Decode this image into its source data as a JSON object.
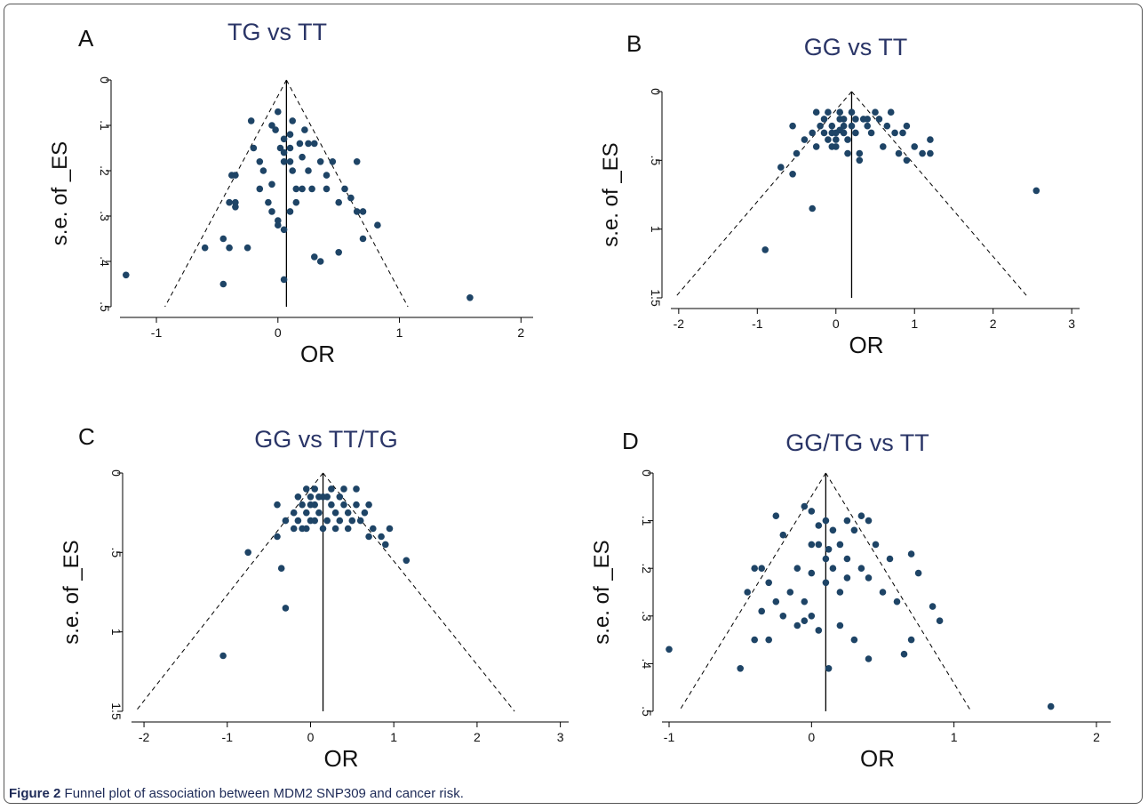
{
  "figure": {
    "caption_label": "Figure 2",
    "caption_text": " Funnel plot of association between MDM2 SNP309 and cancer risk."
  },
  "colors": {
    "points": "#1e4466",
    "axes": "#000000",
    "title": "#2a3567"
  },
  "chart_data": [
    {
      "type": "scatter",
      "panel": "A",
      "title": "TG vs TT",
      "xlabel": "OR",
      "ylabel": "s.e. of _ES",
      "xlim": [
        -1.3,
        2.1
      ],
      "ylim": [
        0,
        0.5
      ],
      "xticks": [
        "-1",
        "0",
        "1",
        "2"
      ],
      "yticks": [
        "0",
        ".1",
        ".2",
        ".3",
        ".4",
        ".5"
      ],
      "summary_effect": 0.07,
      "funnel_base": [
        -0.93,
        1.07
      ],
      "points": [
        [
          -1.25,
          0.43
        ],
        [
          -0.45,
          0.45
        ],
        [
          -0.6,
          0.37
        ],
        [
          -0.45,
          0.35
        ],
        [
          -0.4,
          0.37
        ],
        [
          -0.25,
          0.37
        ],
        [
          -0.38,
          0.21
        ],
        [
          -0.35,
          0.21
        ],
        [
          -0.4,
          0.27
        ],
        [
          -0.35,
          0.27
        ],
        [
          -0.35,
          0.28
        ],
        [
          -0.22,
          0.09
        ],
        [
          -0.2,
          0.15
        ],
        [
          -0.15,
          0.18
        ],
        [
          -0.12,
          0.2
        ],
        [
          -0.05,
          0.1
        ],
        [
          -0.02,
          0.11
        ],
        [
          0.0,
          0.07
        ],
        [
          0.02,
          0.15
        ],
        [
          -0.05,
          0.23
        ],
        [
          -0.08,
          0.27
        ],
        [
          -0.05,
          0.29
        ],
        [
          0.0,
          0.31
        ],
        [
          0.0,
          0.32
        ],
        [
          0.05,
          0.33
        ],
        [
          0.05,
          0.44
        ],
        [
          0.05,
          0.13
        ],
        [
          0.05,
          0.16
        ],
        [
          0.05,
          0.18
        ],
        [
          0.1,
          0.12
        ],
        [
          0.1,
          0.15
        ],
        [
          0.1,
          0.18
        ],
        [
          0.12,
          0.09
        ],
        [
          0.12,
          0.2
        ],
        [
          0.15,
          0.24
        ],
        [
          0.15,
          0.27
        ],
        [
          0.18,
          0.14
        ],
        [
          0.2,
          0.17
        ],
        [
          0.2,
          0.24
        ],
        [
          0.22,
          0.11
        ],
        [
          0.25,
          0.14
        ],
        [
          0.25,
          0.2
        ],
        [
          0.28,
          0.24
        ],
        [
          0.3,
          0.39
        ],
        [
          0.35,
          0.4
        ],
        [
          0.3,
          0.14
        ],
        [
          0.35,
          0.18
        ],
        [
          0.4,
          0.21
        ],
        [
          0.4,
          0.24
        ],
        [
          0.45,
          0.18
        ],
        [
          0.5,
          0.27
        ],
        [
          0.5,
          0.38
        ],
        [
          0.55,
          0.24
        ],
        [
          0.6,
          0.26
        ],
        [
          0.65,
          0.29
        ],
        [
          0.7,
          0.29
        ],
        [
          0.7,
          0.35
        ],
        [
          0.65,
          0.18
        ],
        [
          0.82,
          0.32
        ],
        [
          1.58,
          0.48
        ],
        [
          0.1,
          0.29
        ],
        [
          -0.15,
          0.24
        ]
      ]
    },
    {
      "type": "scatter",
      "panel": "B",
      "title": "GG vs TT",
      "xlabel": "OR",
      "ylabel": "s.e. of _ES",
      "xlim": [
        -2.1,
        3.1
      ],
      "ylim": [
        0,
        1.5
      ],
      "xticks": [
        "-2",
        "-1",
        "0",
        "1",
        "2",
        "3"
      ],
      "yticks": [
        "0",
        ".5",
        "1",
        "1.5"
      ],
      "summary_effect": 0.2,
      "funnel_base": [
        -2.05,
        2.45
      ],
      "points": [
        [
          -0.9,
          1.15
        ],
        [
          -0.3,
          0.85
        ],
        [
          -0.55,
          0.6
        ],
        [
          -0.7,
          0.55
        ],
        [
          -0.5,
          0.45
        ],
        [
          -0.55,
          0.25
        ],
        [
          -0.4,
          0.35
        ],
        [
          -0.3,
          0.3
        ],
        [
          -0.25,
          0.4
        ],
        [
          -0.15,
          0.2
        ],
        [
          -0.1,
          0.15
        ],
        [
          -0.15,
          0.3
        ],
        [
          -0.1,
          0.35
        ],
        [
          -0.05,
          0.25
        ],
        [
          -0.05,
          0.3
        ],
        [
          -0.05,
          0.4
        ],
        [
          0.0,
          0.3
        ],
        [
          0.0,
          0.35
        ],
        [
          0.0,
          0.4
        ],
        [
          0.05,
          0.2
        ],
        [
          0.05,
          0.15
        ],
        [
          0.05,
          0.28
        ],
        [
          0.1,
          0.2
        ],
        [
          0.1,
          0.25
        ],
        [
          0.1,
          0.3
        ],
        [
          0.15,
          0.35
        ],
        [
          0.2,
          0.15
        ],
        [
          0.2,
          0.25
        ],
        [
          0.25,
          0.2
        ],
        [
          0.25,
          0.3
        ],
        [
          0.3,
          0.45
        ],
        [
          0.3,
          0.5
        ],
        [
          0.35,
          0.2
        ],
        [
          0.4,
          0.2
        ],
        [
          0.4,
          0.25
        ],
        [
          0.45,
          0.3
        ],
        [
          0.5,
          0.15
        ],
        [
          0.55,
          0.2
        ],
        [
          0.6,
          0.4
        ],
        [
          0.65,
          0.25
        ],
        [
          0.7,
          0.15
        ],
        [
          0.75,
          0.3
        ],
        [
          0.8,
          0.45
        ],
        [
          0.85,
          0.3
        ],
        [
          0.9,
          0.5
        ],
        [
          0.9,
          0.25
        ],
        [
          1.0,
          0.4
        ],
        [
          1.1,
          0.45
        ],
        [
          1.2,
          0.35
        ],
        [
          1.2,
          0.45
        ],
        [
          2.55,
          0.72
        ],
        [
          -0.2,
          0.25
        ],
        [
          -0.25,
          0.15
        ],
        [
          0.15,
          0.45
        ]
      ]
    },
    {
      "type": "scatter",
      "panel": "C",
      "title": "GG vs TT/TG",
      "xlabel": "OR",
      "ylabel": "s.e. of _ES",
      "xlim": [
        -2.15,
        3.1
      ],
      "ylim": [
        0,
        1.5
      ],
      "xticks": [
        "-2",
        "-1",
        "0",
        "1",
        "2",
        "3"
      ],
      "yticks": [
        "0",
        ".5",
        "1",
        "1.5"
      ],
      "summary_effect": 0.15,
      "funnel_base": [
        -2.1,
        2.45
      ],
      "points": [
        [
          -1.05,
          1.15
        ],
        [
          -0.3,
          0.85
        ],
        [
          -0.35,
          0.6
        ],
        [
          -0.75,
          0.5
        ],
        [
          -0.4,
          0.4
        ],
        [
          -0.4,
          0.2
        ],
        [
          -0.3,
          0.3
        ],
        [
          -0.2,
          0.35
        ],
        [
          -0.15,
          0.15
        ],
        [
          -0.15,
          0.3
        ],
        [
          -0.1,
          0.2
        ],
        [
          -0.1,
          0.35
        ],
        [
          -0.05,
          0.1
        ],
        [
          -0.05,
          0.25
        ],
        [
          -0.05,
          0.35
        ],
        [
          0.0,
          0.15
        ],
        [
          0.0,
          0.2
        ],
        [
          0.0,
          0.3
        ],
        [
          0.05,
          0.1
        ],
        [
          0.05,
          0.2
        ],
        [
          0.05,
          0.3
        ],
        [
          0.1,
          0.15
        ],
        [
          0.1,
          0.25
        ],
        [
          0.15,
          0.35
        ],
        [
          0.2,
          0.15
        ],
        [
          0.2,
          0.3
        ],
        [
          0.25,
          0.1
        ],
        [
          0.25,
          0.2
        ],
        [
          0.3,
          0.25
        ],
        [
          0.3,
          0.35
        ],
        [
          0.35,
          0.15
        ],
        [
          0.35,
          0.3
        ],
        [
          0.4,
          0.2
        ],
        [
          0.4,
          0.1
        ],
        [
          0.45,
          0.25
        ],
        [
          0.5,
          0.3
        ],
        [
          0.55,
          0.1
        ],
        [
          0.55,
          0.2
        ],
        [
          0.6,
          0.3
        ],
        [
          0.65,
          0.25
        ],
        [
          0.7,
          0.2
        ],
        [
          0.7,
          0.4
        ],
        [
          0.75,
          0.35
        ],
        [
          0.85,
          0.4
        ],
        [
          0.9,
          0.45
        ],
        [
          0.95,
          0.35
        ],
        [
          1.15,
          0.55
        ],
        [
          -0.2,
          0.25
        ],
        [
          0.15,
          0.15
        ],
        [
          0.45,
          0.35
        ]
      ]
    },
    {
      "type": "scatter",
      "panel": "D",
      "title": "GG/TG vs TT",
      "xlabel": "OR",
      "ylabel": "s.e. of _ES",
      "xlim": [
        -1.05,
        2.1
      ],
      "ylim": [
        0,
        0.5
      ],
      "xticks": [
        "-1",
        "0",
        "1",
        "2"
      ],
      "yticks": [
        "0",
        ".1",
        ".2",
        ".3",
        ".4",
        ".5"
      ],
      "summary_effect": 0.1,
      "funnel_base": [
        -0.93,
        1.12
      ],
      "points": [
        [
          -1.0,
          0.37
        ],
        [
          -0.5,
          0.41
        ],
        [
          -0.45,
          0.25
        ],
        [
          -0.4,
          0.2
        ],
        [
          -0.35,
          0.2
        ],
        [
          -0.4,
          0.35
        ],
        [
          -0.3,
          0.35
        ],
        [
          -0.3,
          0.23
        ],
        [
          -0.25,
          0.27
        ],
        [
          -0.25,
          0.09
        ],
        [
          -0.2,
          0.13
        ],
        [
          -0.2,
          0.3
        ],
        [
          -0.15,
          0.25
        ],
        [
          -0.1,
          0.2
        ],
        [
          -0.1,
          0.32
        ],
        [
          -0.05,
          0.07
        ],
        [
          -0.05,
          0.27
        ],
        [
          -0.05,
          0.31
        ],
        [
          0.0,
          0.08
        ],
        [
          0.0,
          0.15
        ],
        [
          0.0,
          0.21
        ],
        [
          0.0,
          0.3
        ],
        [
          0.05,
          0.11
        ],
        [
          0.05,
          0.15
        ],
        [
          0.05,
          0.33
        ],
        [
          0.1,
          0.1
        ],
        [
          0.1,
          0.18
        ],
        [
          0.1,
          0.23
        ],
        [
          0.12,
          0.41
        ],
        [
          0.12,
          0.16
        ],
        [
          0.15,
          0.12
        ],
        [
          0.15,
          0.2
        ],
        [
          0.2,
          0.15
        ],
        [
          0.2,
          0.25
        ],
        [
          0.2,
          0.32
        ],
        [
          0.25,
          0.18
        ],
        [
          0.25,
          0.22
        ],
        [
          0.3,
          0.12
        ],
        [
          0.3,
          0.35
        ],
        [
          0.35,
          0.09
        ],
        [
          0.35,
          0.2
        ],
        [
          0.4,
          0.1
        ],
        [
          0.4,
          0.22
        ],
        [
          0.4,
          0.39
        ],
        [
          0.45,
          0.15
        ],
        [
          0.5,
          0.25
        ],
        [
          0.55,
          0.18
        ],
        [
          0.6,
          0.27
        ],
        [
          0.65,
          0.38
        ],
        [
          0.7,
          0.17
        ],
        [
          0.7,
          0.35
        ],
        [
          0.75,
          0.21
        ],
        [
          0.85,
          0.28
        ],
        [
          0.9,
          0.31
        ],
        [
          1.68,
          0.49
        ],
        [
          -0.35,
          0.29
        ],
        [
          0.25,
          0.1
        ]
      ]
    }
  ]
}
